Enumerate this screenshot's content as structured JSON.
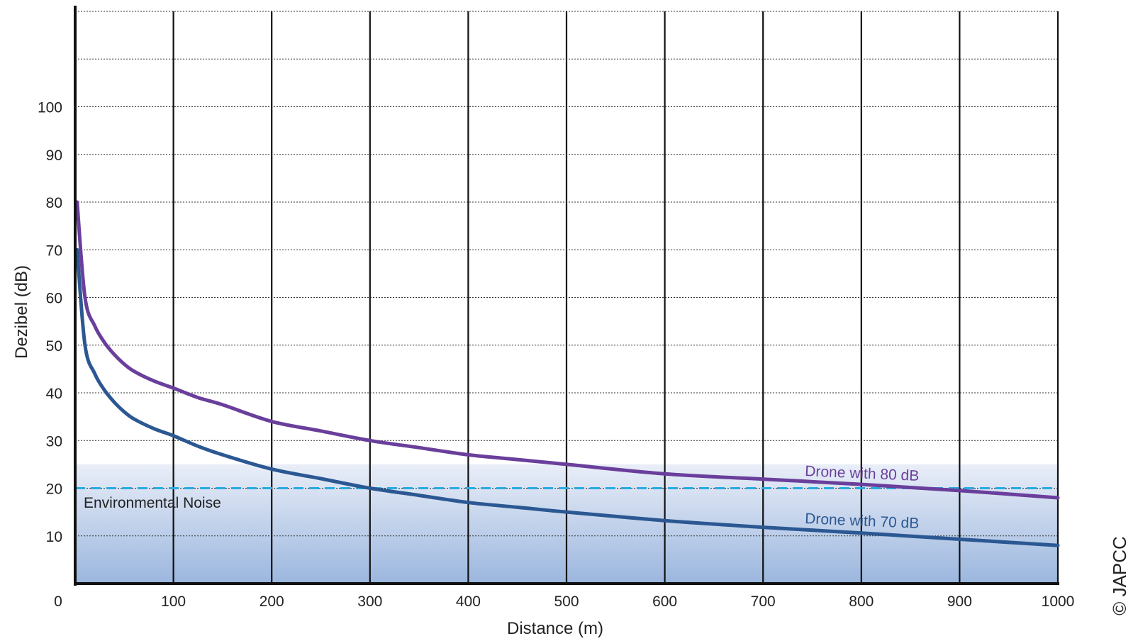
{
  "chart_data": {
    "type": "line",
    "xlabel": "Distance (m)",
    "ylabel": "Dezibel (dB)",
    "xlim": [
      0,
      1000
    ],
    "ylim": [
      0,
      120
    ],
    "x_ticks": [
      0,
      100,
      200,
      300,
      400,
      500,
      600,
      700,
      800,
      900,
      1000
    ],
    "y_ticks": [
      10,
      20,
      30,
      40,
      50,
      60,
      70,
      80,
      90,
      100
    ],
    "grid": {
      "vertical": "solid",
      "horizontal": "dotted"
    },
    "series": [
      {
        "name": "Drone with 80 dB",
        "color": "#6a3f9c",
        "x": [
          2,
          10,
          20,
          30,
          40,
          50,
          60,
          80,
          100,
          125,
          150,
          200,
          250,
          300,
          350,
          400,
          450,
          500,
          600,
          700,
          800,
          900,
          1000
        ],
        "values": [
          80,
          60,
          54,
          50.5,
          48,
          46,
          44.5,
          42.5,
          41,
          39,
          37.5,
          34,
          32,
          30,
          28.5,
          27,
          26,
          25,
          23,
          21.9,
          20.8,
          19.5,
          18
        ]
      },
      {
        "name": "Drone with 70 dB",
        "color": "#2b5892",
        "x": [
          2,
          10,
          20,
          30,
          40,
          50,
          60,
          80,
          100,
          125,
          150,
          200,
          250,
          300,
          350,
          400,
          450,
          500,
          600,
          700,
          800,
          900,
          1000
        ],
        "values": [
          70,
          50,
          44,
          40.5,
          38,
          36,
          34.5,
          32.5,
          31,
          28.8,
          27,
          24,
          22,
          20,
          18.5,
          17,
          16,
          15,
          13.2,
          11.8,
          10.6,
          9.3,
          8
        ]
      }
    ],
    "threshold": {
      "name": "Environmental Noise",
      "value": 20,
      "band_top": 25,
      "line_color": "#29abe2",
      "band_color_top": "#e9eef8",
      "band_color_bottom": "#9bb6de"
    }
  },
  "credit": "© JAPCC"
}
